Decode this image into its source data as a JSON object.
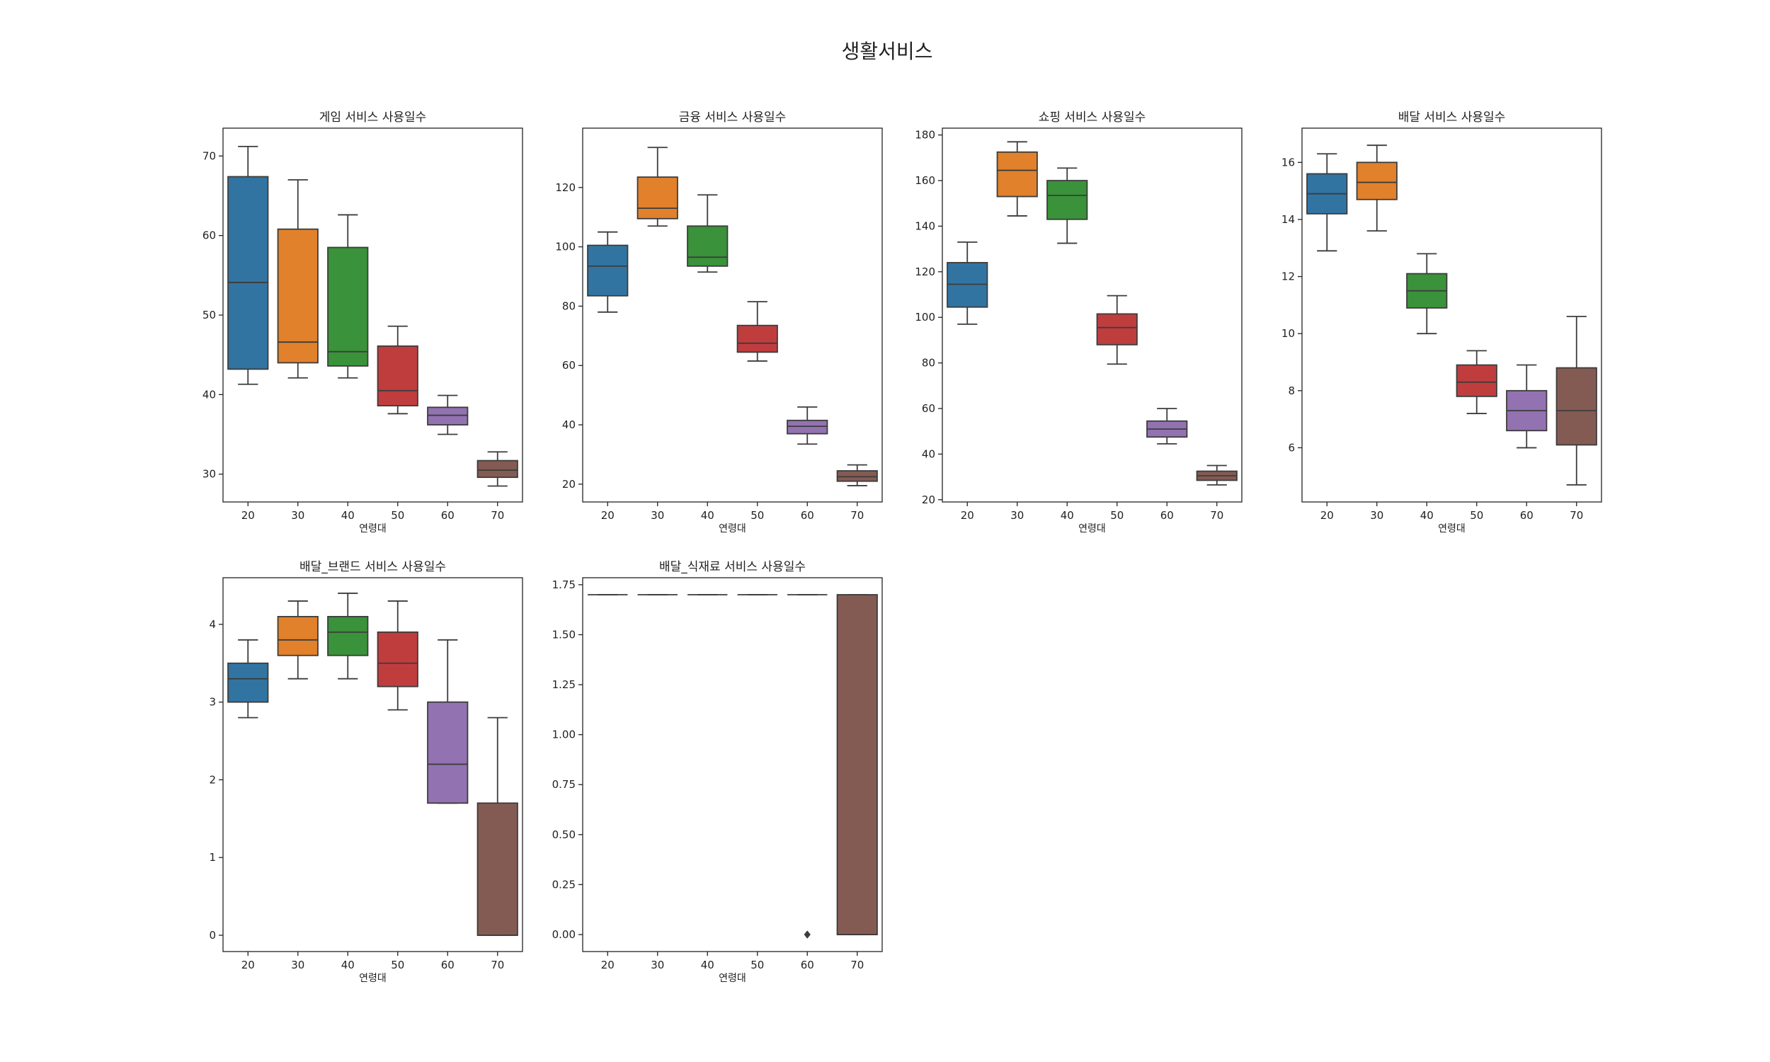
{
  "figure": {
    "suptitle": "생활서비스"
  },
  "colors": {
    "palette": [
      "#3274a1",
      "#e1812c",
      "#3a923a",
      "#c03d3e",
      "#9372b2",
      "#845b53"
    ],
    "edge": "#3c3c3c",
    "axes": "#222222"
  },
  "chart_data": [
    {
      "type": "box",
      "title": "게임 서비스 사용일수",
      "xlabel": "연령대",
      "ylabel": "",
      "categories": [
        "20",
        "30",
        "40",
        "50",
        "60",
        "70"
      ],
      "ylim": [
        26.5,
        73.5
      ],
      "yticks": [
        30,
        40,
        50,
        60,
        70
      ],
      "ytick_labels": [
        "30",
        "40",
        "50",
        "60",
        "70"
      ],
      "boxes": [
        {
          "whislo": 41.3,
          "q1": 43.2,
          "med": 54.1,
          "q3": 67.4,
          "whishi": 71.2
        },
        {
          "whislo": 42.1,
          "q1": 44.0,
          "med": 46.6,
          "q3": 60.8,
          "whishi": 67.0
        },
        {
          "whislo": 42.1,
          "q1": 43.6,
          "med": 45.4,
          "q3": 58.5,
          "whishi": 62.6
        },
        {
          "whislo": 37.6,
          "q1": 38.6,
          "med": 40.5,
          "q3": 46.1,
          "whishi": 48.6
        },
        {
          "whislo": 35.0,
          "q1": 36.2,
          "med": 37.4,
          "q3": 38.4,
          "whishi": 39.9
        },
        {
          "whislo": 28.5,
          "q1": 29.6,
          "med": 30.5,
          "q3": 31.7,
          "whishi": 32.8
        }
      ],
      "fliers": []
    },
    {
      "type": "box",
      "title": "금융 서비스 사용일수",
      "xlabel": "연령대",
      "ylabel": "",
      "categories": [
        "20",
        "30",
        "40",
        "50",
        "60",
        "70"
      ],
      "ylim": [
        14,
        140
      ],
      "yticks": [
        20,
        40,
        60,
        80,
        100,
        120
      ],
      "ytick_labels": [
        "20",
        "40",
        "60",
        "80",
        "100",
        "120"
      ],
      "boxes": [
        {
          "whislo": 78.0,
          "q1": 83.5,
          "med": 93.5,
          "q3": 100.5,
          "whishi": 105.0
        },
        {
          "whislo": 107.0,
          "q1": 109.5,
          "med": 113.0,
          "q3": 123.5,
          "whishi": 133.5
        },
        {
          "whislo": 91.5,
          "q1": 93.5,
          "med": 96.5,
          "q3": 107.0,
          "whishi": 117.5
        },
        {
          "whislo": 61.5,
          "q1": 64.5,
          "med": 67.5,
          "q3": 73.5,
          "whishi": 81.5
        },
        {
          "whislo": 33.5,
          "q1": 37.0,
          "med": 39.5,
          "q3": 41.5,
          "whishi": 46.0
        },
        {
          "whislo": 19.5,
          "q1": 21.0,
          "med": 22.5,
          "q3": 24.5,
          "whishi": 26.5
        }
      ],
      "fliers": []
    },
    {
      "type": "box",
      "title": "쇼핑 서비스 사용일수",
      "xlabel": "연령대",
      "ylabel": "",
      "categories": [
        "20",
        "30",
        "40",
        "50",
        "60",
        "70"
      ],
      "ylim": [
        19,
        183
      ],
      "yticks": [
        20,
        40,
        60,
        80,
        100,
        120,
        140,
        160,
        180
      ],
      "ytick_labels": [
        "20",
        "40",
        "60",
        "80",
        "100",
        "120",
        "140",
        "160",
        "180"
      ],
      "boxes": [
        {
          "whislo": 97.0,
          "q1": 104.5,
          "med": 114.5,
          "q3": 124.0,
          "whishi": 133.0
        },
        {
          "whislo": 144.5,
          "q1": 153.0,
          "med": 164.5,
          "q3": 172.5,
          "whishi": 177.0
        },
        {
          "whislo": 132.5,
          "q1": 143.0,
          "med": 153.5,
          "q3": 160.0,
          "whishi": 165.5
        },
        {
          "whislo": 79.5,
          "q1": 88.0,
          "med": 95.5,
          "q3": 101.5,
          "whishi": 109.5
        },
        {
          "whislo": 44.5,
          "q1": 47.5,
          "med": 51.0,
          "q3": 54.5,
          "whishi": 60.0
        },
        {
          "whislo": 26.5,
          "q1": 28.5,
          "med": 30.5,
          "q3": 32.5,
          "whishi": 35.0
        }
      ],
      "fliers": []
    },
    {
      "type": "box",
      "title": "배달 서비스 사용일수",
      "xlabel": "연령대",
      "ylabel": "",
      "categories": [
        "20",
        "30",
        "40",
        "50",
        "60",
        "70"
      ],
      "ylim": [
        4.1,
        17.2
      ],
      "yticks": [
        6,
        8,
        10,
        12,
        14,
        16
      ],
      "ytick_labels": [
        "6",
        "8",
        "10",
        "12",
        "14",
        "16"
      ],
      "boxes": [
        {
          "whislo": 12.9,
          "q1": 14.2,
          "med": 14.9,
          "q3": 15.6,
          "whishi": 16.3
        },
        {
          "whislo": 13.6,
          "q1": 14.7,
          "med": 15.3,
          "q3": 16.0,
          "whishi": 16.6
        },
        {
          "whislo": 10.0,
          "q1": 10.9,
          "med": 11.5,
          "q3": 12.1,
          "whishi": 12.8
        },
        {
          "whislo": 7.2,
          "q1": 7.8,
          "med": 8.3,
          "q3": 8.9,
          "whishi": 9.4
        },
        {
          "whislo": 6.0,
          "q1": 6.6,
          "med": 7.3,
          "q3": 8.0,
          "whishi": 8.9
        },
        {
          "whislo": 4.7,
          "q1": 6.1,
          "med": 7.3,
          "q3": 8.8,
          "whishi": 10.6
        }
      ],
      "fliers": []
    },
    {
      "type": "box",
      "title": "배달_브랜드 서비스 사용일수",
      "xlabel": "연령대",
      "ylabel": "",
      "categories": [
        "20",
        "30",
        "40",
        "50",
        "60",
        "70"
      ],
      "ylim": [
        -0.21,
        4.6
      ],
      "yticks": [
        0,
        1,
        2,
        3,
        4
      ],
      "ytick_labels": [
        "0",
        "1",
        "2",
        "3",
        "4"
      ],
      "boxes": [
        {
          "whislo": 2.8,
          "q1": 3.0,
          "med": 3.3,
          "q3": 3.5,
          "whishi": 3.8
        },
        {
          "whislo": 3.3,
          "q1": 3.6,
          "med": 3.8,
          "q3": 4.1,
          "whishi": 4.3
        },
        {
          "whislo": 3.3,
          "q1": 3.6,
          "med": 3.9,
          "q3": 4.1,
          "whishi": 4.4
        },
        {
          "whislo": 2.9,
          "q1": 3.2,
          "med": 3.5,
          "q3": 3.9,
          "whishi": 4.3
        },
        {
          "whislo": 1.7,
          "q1": 1.7,
          "med": 2.2,
          "q3": 3.0,
          "whishi": 3.8
        },
        {
          "whislo": 0.0,
          "q1": 0.0,
          "med": 0.0,
          "q3": 1.7,
          "whishi": 2.8
        }
      ],
      "fliers": []
    },
    {
      "type": "box",
      "title": "배달_식재료 서비스 사용일수",
      "xlabel": "연령대",
      "ylabel": "",
      "categories": [
        "20",
        "30",
        "40",
        "50",
        "60",
        "70"
      ],
      "ylim": [
        -0.085,
        1.785
      ],
      "yticks": [
        0,
        0.25,
        0.5,
        0.75,
        1.0,
        1.25,
        1.5,
        1.75
      ],
      "ytick_labels": [
        "0.00",
        "0.25",
        "0.50",
        "0.75",
        "1.00",
        "1.25",
        "1.50",
        "1.75"
      ],
      "boxes": [
        {
          "whislo": 1.7,
          "q1": 1.7,
          "med": 1.7,
          "q3": 1.7,
          "whishi": 1.7
        },
        {
          "whislo": 1.7,
          "q1": 1.7,
          "med": 1.7,
          "q3": 1.7,
          "whishi": 1.7
        },
        {
          "whislo": 1.7,
          "q1": 1.7,
          "med": 1.7,
          "q3": 1.7,
          "whishi": 1.7
        },
        {
          "whislo": 1.7,
          "q1": 1.7,
          "med": 1.7,
          "q3": 1.7,
          "whishi": 1.7
        },
        {
          "whislo": 1.7,
          "q1": 1.7,
          "med": 1.7,
          "q3": 1.7,
          "whishi": 1.7
        },
        {
          "whislo": 0.0,
          "q1": 0.0,
          "med": 0.0,
          "q3": 1.7,
          "whishi": 1.7
        }
      ],
      "fliers": [
        {
          "category": "60",
          "value": 0.0
        }
      ]
    }
  ]
}
